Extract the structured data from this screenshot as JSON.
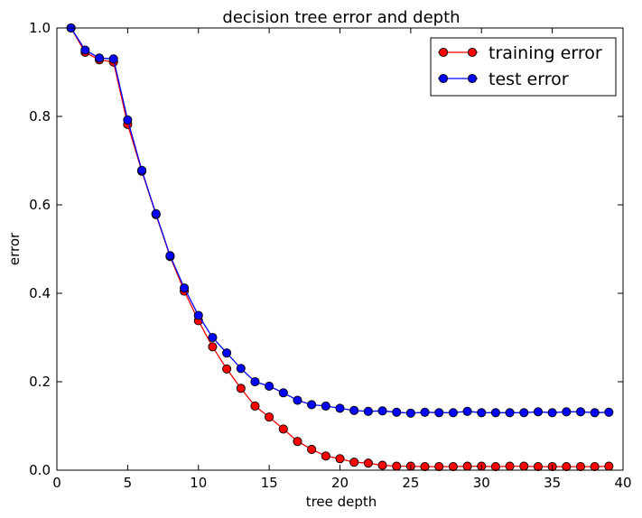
{
  "chart_data": {
    "type": "line",
    "title": "decision tree error and depth",
    "xlabel": "tree depth",
    "ylabel": "error",
    "xlim": [
      0,
      40
    ],
    "ylim": [
      0.0,
      1.0
    ],
    "xticks": [
      "0",
      "5",
      "10",
      "15",
      "20",
      "25",
      "30",
      "35",
      "40"
    ],
    "yticks": [
      "0.0",
      "0.2",
      "0.4",
      "0.6",
      "0.8",
      "1.0"
    ],
    "grid": false,
    "legend_position": "top-right",
    "x": [
      1,
      2,
      3,
      4,
      5,
      6,
      7,
      8,
      9,
      10,
      11,
      12,
      13,
      14,
      15,
      16,
      17,
      18,
      19,
      20,
      21,
      22,
      23,
      24,
      25,
      26,
      27,
      28,
      29,
      30,
      31,
      32,
      33,
      34,
      35,
      36,
      37,
      38,
      39
    ],
    "series": [
      {
        "name": "training error",
        "color": "#ff0000",
        "values": [
          1.0,
          0.945,
          0.928,
          0.923,
          0.782,
          0.676,
          0.578,
          0.483,
          0.405,
          0.338,
          0.279,
          0.229,
          0.185,
          0.145,
          0.12,
          0.093,
          0.065,
          0.047,
          0.032,
          0.026,
          0.018,
          0.016,
          0.011,
          0.009,
          0.009,
          0.008,
          0.008,
          0.008,
          0.009,
          0.009,
          0.008,
          0.009,
          0.009,
          0.008,
          0.008,
          0.008,
          0.008,
          0.008,
          0.009
        ]
      },
      {
        "name": "test error",
        "color": "#0000ff",
        "values": [
          1.0,
          0.95,
          0.932,
          0.93,
          0.792,
          0.678,
          0.58,
          0.485,
          0.412,
          0.35,
          0.3,
          0.265,
          0.23,
          0.2,
          0.19,
          0.175,
          0.158,
          0.148,
          0.145,
          0.14,
          0.135,
          0.133,
          0.134,
          0.131,
          0.129,
          0.131,
          0.13,
          0.13,
          0.133,
          0.13,
          0.13,
          0.13,
          0.13,
          0.132,
          0.13,
          0.132,
          0.132,
          0.13,
          0.131
        ]
      }
    ]
  }
}
